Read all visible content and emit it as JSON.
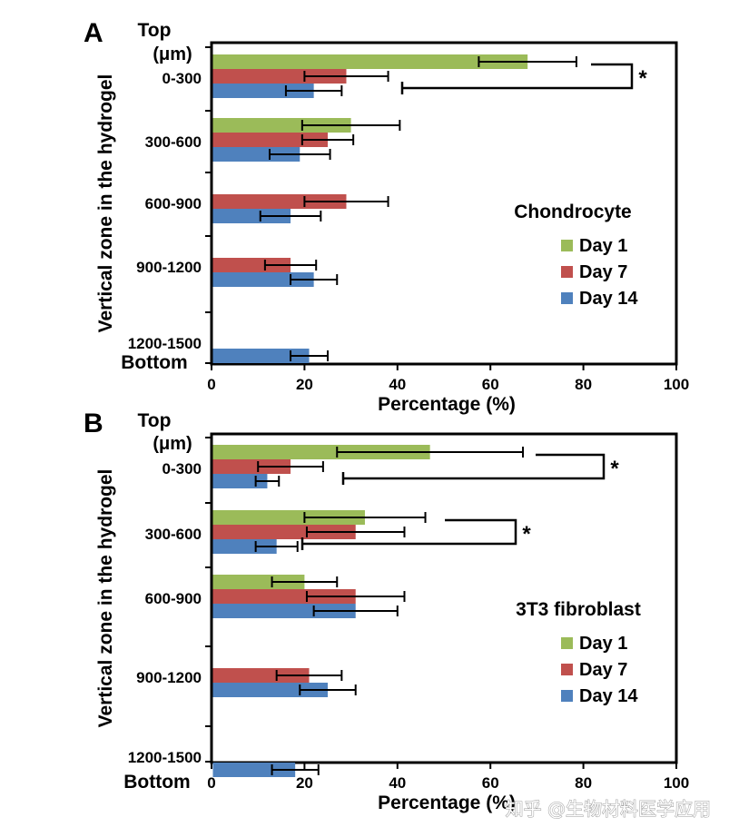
{
  "watermark": "知乎 @生物材料医学应用",
  "colors": {
    "day1": "#9BBB59",
    "day7": "#C0504D",
    "day14": "#4F81BD"
  },
  "chart_data": [
    {
      "type": "bar",
      "orientation": "horizontal",
      "panel": "A",
      "title": "Chondrocyte",
      "xlabel": "Percentage (%)",
      "ylabel": "Vertical zone in the hydrogel",
      "top_label": "Top",
      "unit_label": "(μm)",
      "bottom_label": "Bottom",
      "xlim": [
        0,
        100
      ],
      "xticks": [
        "0",
        "20",
        "40",
        "60",
        "80",
        "100"
      ],
      "categories": [
        "0-300",
        "300-600",
        "600-900",
        "900-1200",
        "1200-1500"
      ],
      "series": [
        {
          "name": "Day 1",
          "color_key": "day1",
          "values": [
            68,
            30,
            0,
            0,
            0
          ],
          "errors": [
            10.5,
            10.5,
            0,
            0,
            0
          ]
        },
        {
          "name": "Day 7",
          "color_key": "day7",
          "values": [
            29,
            25,
            29,
            17,
            0
          ],
          "errors": [
            9,
            5.5,
            9,
            5.5,
            0
          ]
        },
        {
          "name": "Day 14",
          "color_key": "day14",
          "values": [
            22,
            19,
            17,
            22,
            21
          ],
          "errors": [
            6,
            6.5,
            6.5,
            5,
            4
          ]
        }
      ],
      "significance": [
        {
          "category": "0-300",
          "between": [
            "Day 1",
            "Day 14"
          ],
          "label": "*"
        }
      ]
    },
    {
      "type": "bar",
      "orientation": "horizontal",
      "panel": "B",
      "title": "3T3 fibroblast",
      "xlabel": "Percentage (%)",
      "ylabel": "Vertical zone in the hydrogel",
      "top_label": "Top",
      "unit_label": "(μm)",
      "bottom_label": "Bottom",
      "xlim": [
        0,
        100
      ],
      "xticks": [
        "0",
        "20",
        "40",
        "60",
        "80",
        "100"
      ],
      "categories": [
        "0-300",
        "300-600",
        "600-900",
        "900-1200",
        "1200-1500"
      ],
      "series": [
        {
          "name": "Day 1",
          "color_key": "day1",
          "values": [
            47,
            33,
            20,
            0,
            0
          ],
          "errors": [
            20,
            13,
            7,
            0,
            0
          ]
        },
        {
          "name": "Day 7",
          "color_key": "day7",
          "values": [
            17,
            31,
            31,
            21,
            0
          ],
          "errors": [
            7,
            10.5,
            10.5,
            7,
            0
          ]
        },
        {
          "name": "Day 14",
          "color_key": "day14",
          "values": [
            12,
            14,
            31,
            25,
            18
          ],
          "errors": [
            2.5,
            4.5,
            9,
            6,
            5
          ]
        }
      ],
      "significance": [
        {
          "category": "0-300",
          "between": [
            "Day 1",
            "Day 14"
          ],
          "label": "*"
        },
        {
          "category": "300-600",
          "between": [
            "Day 1",
            "Day 14"
          ],
          "label": "*"
        }
      ]
    }
  ]
}
